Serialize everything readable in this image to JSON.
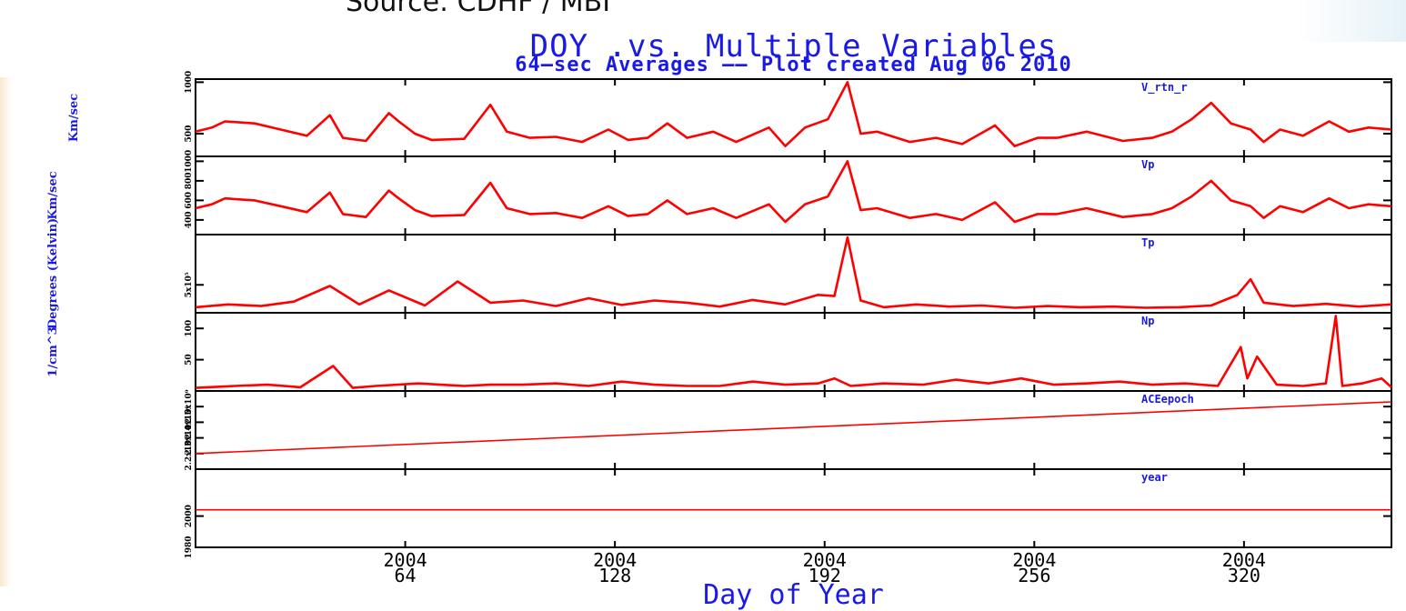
{
  "source_text": "Source: CDHF / MBI",
  "chart_data": {
    "type": "line",
    "title": "DOY .vs. Multiple Variables",
    "subtitle": "64—sec Averages —— Plot created Aug 06 2010",
    "xlabel": "Day of Year",
    "xlim": [
      0,
      365
    ],
    "x_ticks": [
      {
        "x": 64,
        "year": "2004",
        "day": "64"
      },
      {
        "x": 128,
        "year": "2004",
        "day": "128"
      },
      {
        "x": 192,
        "year": "2004",
        "day": "192"
      },
      {
        "x": 256,
        "year": "2004",
        "day": "256"
      },
      {
        "x": 320,
        "year": "2004",
        "day": "320"
      }
    ],
    "grid": false,
    "colors": {
      "data": "#ff0000",
      "text": "#1a1ae6",
      "axes": "#000000"
    },
    "panels": [
      {
        "name": "V_rtn_r",
        "ylabel": "Km/sec",
        "ylim": [
          280,
          1030
        ],
        "yticks": [
          {
            "v": 500,
            "label": "500"
          },
          {
            "v": 1000,
            "label": "1000"
          }
        ],
        "x": [
          0,
          5,
          9,
          18,
          26,
          34,
          41,
          45,
          52,
          59,
          62,
          67,
          72,
          82,
          90,
          95,
          102,
          110,
          118,
          126,
          132,
          138,
          144,
          150,
          158,
          165,
          175,
          180,
          186,
          193,
          199,
          203,
          208,
          218,
          226,
          234,
          244,
          250,
          257,
          263,
          272,
          283,
          292,
          298,
          304,
          310,
          316,
          322,
          326,
          331,
          338,
          346,
          352,
          358,
          365
        ],
        "values": [
          520,
          560,
          620,
          600,
          540,
          480,
          680,
          460,
          430,
          700,
          620,
          500,
          440,
          450,
          780,
          520,
          460,
          470,
          420,
          540,
          440,
          460,
          600,
          460,
          520,
          420,
          560,
          380,
          560,
          640,
          1000,
          500,
          520,
          420,
          460,
          400,
          580,
          380,
          460,
          460,
          520,
          430,
          460,
          520,
          640,
          800,
          600,
          540,
          420,
          540,
          480,
          620,
          520,
          560,
          540
        ]
      },
      {
        "name": "Vp",
        "ylabel": "Km/sec",
        "ylim": [
          250,
          1050
        ],
        "yticks": [
          {
            "v": 400,
            "label": "400"
          },
          {
            "v": 600,
            "label": "600"
          },
          {
            "v": 800,
            "label": "800"
          },
          {
            "v": 1000,
            "label": "1000"
          }
        ],
        "x": [
          0,
          5,
          9,
          18,
          26,
          34,
          41,
          45,
          52,
          59,
          62,
          67,
          72,
          82,
          90,
          95,
          102,
          110,
          118,
          126,
          132,
          138,
          144,
          150,
          158,
          165,
          175,
          180,
          186,
          193,
          199,
          203,
          208,
          218,
          226,
          234,
          244,
          250,
          257,
          263,
          272,
          283,
          292,
          298,
          304,
          310,
          316,
          322,
          326,
          331,
          338,
          346,
          352,
          358,
          365
        ],
        "values": [
          520,
          560,
          620,
          600,
          540,
          480,
          680,
          460,
          430,
          700,
          620,
          500,
          440,
          450,
          780,
          520,
          460,
          470,
          420,
          540,
          440,
          460,
          600,
          460,
          520,
          420,
          560,
          380,
          560,
          640,
          1000,
          500,
          520,
          420,
          460,
          400,
          580,
          380,
          460,
          460,
          520,
          430,
          460,
          520,
          640,
          800,
          600,
          540,
          420,
          540,
          480,
          620,
          520,
          560,
          540
        ]
      },
      {
        "name": "Tp",
        "ylabel": "Degrees (Kelvin)",
        "ylim": [
          0,
          1400000
        ],
        "yticks": [
          {
            "v": 500000,
            "label": "5x10⁵"
          }
        ],
        "x": [
          0,
          10,
          20,
          30,
          41,
          50,
          59,
          70,
          80,
          90,
          100,
          110,
          120,
          130,
          140,
          150,
          160,
          170,
          180,
          190,
          195,
          199,
          203,
          210,
          220,
          230,
          240,
          250,
          260,
          270,
          280,
          290,
          300,
          310,
          318,
          322,
          326,
          335,
          345,
          355,
          365
        ],
        "values": [
          100000,
          150000,
          120000,
          200000,
          480000,
          150000,
          400000,
          130000,
          560000,
          180000,
          220000,
          120000,
          260000,
          140000,
          220000,
          180000,
          110000,
          230000,
          150000,
          320000,
          300000,
          1350000,
          220000,
          100000,
          150000,
          110000,
          130000,
          90000,
          120000,
          100000,
          110000,
          90000,
          100000,
          130000,
          320000,
          600000,
          180000,
          120000,
          160000,
          110000,
          150000
        ]
      },
      {
        "name": "Np",
        "ylabel": "1/cm^3",
        "ylim": [
          0,
          125
        ],
        "yticks": [
          {
            "v": 50,
            "label": "50"
          },
          {
            "v": 100,
            "label": "100"
          }
        ],
        "x": [
          0,
          12,
          22,
          32,
          42,
          48,
          55,
          68,
          82,
          90,
          100,
          110,
          120,
          130,
          140,
          150,
          160,
          170,
          180,
          190,
          195,
          200,
          210,
          222,
          232,
          242,
          252,
          262,
          272,
          282,
          292,
          302,
          312,
          319,
          321,
          324,
          330,
          338,
          345,
          348,
          350,
          356,
          362,
          365
        ],
        "values": [
          5,
          8,
          10,
          6,
          40,
          5,
          8,
          12,
          8,
          10,
          10,
          12,
          8,
          15,
          10,
          8,
          8,
          15,
          10,
          12,
          20,
          8,
          12,
          10,
          18,
          12,
          20,
          10,
          12,
          15,
          10,
          12,
          8,
          70,
          20,
          55,
          10,
          8,
          12,
          120,
          8,
          12,
          20,
          6
        ]
      },
      {
        "name": "ACEepoch",
        "ylabel": "",
        "ylim": [
          2100000000.0,
          2600000000.0
        ],
        "yticks": [
          {
            "v": 2200000000.0,
            "label": "2.2x10⁹"
          },
          {
            "v": 2300000000.0,
            "label": "2.3x10⁹"
          },
          {
            "v": 2400000000.0,
            "label": "2.4x10⁹"
          },
          {
            "v": 2500000000.0,
            "label": "2.5x10⁹"
          }
        ],
        "x": [
          0,
          365
        ],
        "values": [
          2200000000.0,
          2530000000.0
        ]
      },
      {
        "name": "year",
        "ylabel": "",
        "ylim": [
          1980,
          2030
        ],
        "yticks": [
          {
            "v": 1980,
            "label": "1980"
          },
          {
            "v": 2000,
            "label": "2000"
          }
        ],
        "x": [
          0,
          365
        ],
        "values": [
          2004,
          2004
        ]
      }
    ]
  }
}
